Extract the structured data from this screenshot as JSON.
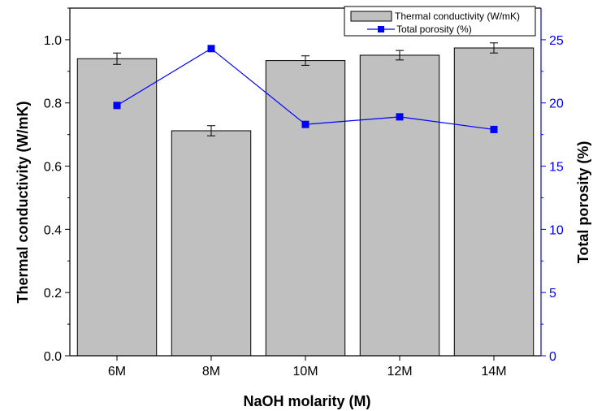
{
  "chart_data": {
    "type": "bar",
    "categories": [
      "6M",
      "8M",
      "10M",
      "12M",
      "14M"
    ],
    "xlabel": "NaOH molarity (M)",
    "ylabel": "Thermal conductivity (W/mK)",
    "ylabel_right": "Total porosity (%)",
    "ylim": [
      0,
      1.1
    ],
    "ylim_right": [
      0,
      27.5
    ],
    "yticks": [
      "0.0",
      "0.2",
      "0.4",
      "0.6",
      "0.8",
      "1.0"
    ],
    "yticks_right": [
      "0",
      "5",
      "10",
      "15",
      "20",
      "25"
    ],
    "legend_position": "top-right",
    "series": [
      {
        "name": "Thermal conductivity (W/mK)",
        "kind": "bar",
        "axis": "left",
        "color": "#c0c0c0",
        "values": [
          0.94,
          0.712,
          0.934,
          0.951,
          0.974
        ],
        "errors": [
          0.018,
          0.016,
          0.015,
          0.015,
          0.016
        ]
      },
      {
        "name": "Total porosity (%)",
        "kind": "line",
        "axis": "right",
        "color": "#0000ff",
        "values": [
          19.8,
          24.3,
          18.3,
          18.9,
          17.9
        ]
      }
    ]
  }
}
